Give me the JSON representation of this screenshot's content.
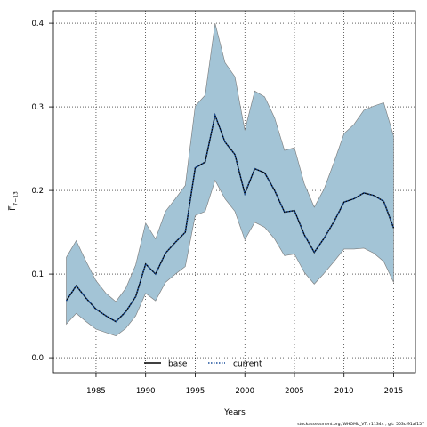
{
  "chart_data": {
    "type": "line",
    "title": "",
    "xlabel": "Years",
    "ylabel": "F̅",
    "ylabel_subscript": "7−13",
    "xlim": [
      1980.7,
      2017.2
    ],
    "ylim": [
      -0.018,
      0.415
    ],
    "xticks": [
      1985,
      1990,
      1995,
      2000,
      2005,
      2010,
      2015
    ],
    "yticks": [
      0.0,
      0.1,
      0.2,
      0.3,
      0.4
    ],
    "ytick_labels": [
      "0.0",
      "0.1",
      "0.2",
      "0.3",
      "0.4"
    ],
    "grid": true,
    "legend_position": "bottom-center",
    "x": [
      1982,
      1983,
      1984,
      1985,
      1986,
      1987,
      1988,
      1989,
      1990,
      1991,
      1992,
      1993,
      1994,
      1995,
      1996,
      1997,
      1998,
      1999,
      2000,
      2001,
      2002,
      2003,
      2004,
      2005,
      2006,
      2007,
      2008,
      2009,
      2010,
      2011,
      2012,
      2013,
      2014,
      2015
    ],
    "band": {
      "lower": [
        0.04,
        0.053,
        0.043,
        0.034,
        0.03,
        0.026,
        0.035,
        0.05,
        0.077,
        0.068,
        0.09,
        0.1,
        0.109,
        0.17,
        0.175,
        0.212,
        0.19,
        0.175,
        0.141,
        0.162,
        0.156,
        0.142,
        0.122,
        0.124,
        0.102,
        0.088,
        0.101,
        0.115,
        0.13,
        0.13,
        0.131,
        0.125,
        0.115,
        0.09
      ],
      "upper": [
        0.12,
        0.14,
        0.115,
        0.092,
        0.077,
        0.067,
        0.083,
        0.111,
        0.161,
        0.142,
        0.175,
        0.19,
        0.206,
        0.301,
        0.314,
        0.4,
        0.353,
        0.336,
        0.272,
        0.319,
        0.312,
        0.287,
        0.248,
        0.251,
        0.208,
        0.18,
        0.202,
        0.234,
        0.268,
        0.279,
        0.296,
        0.301,
        0.305,
        0.265
      ],
      "color": "#a3c4d6"
    },
    "series": [
      {
        "name": "base",
        "style": "solid",
        "color": "#000000",
        "values": [
          0.068,
          0.086,
          0.071,
          0.058,
          0.05,
          0.043,
          0.055,
          0.073,
          0.112,
          0.1,
          0.125,
          0.138,
          0.15,
          0.227,
          0.234,
          0.29,
          0.258,
          0.243,
          0.196,
          0.226,
          0.221,
          0.2,
          0.174,
          0.176,
          0.147,
          0.126,
          0.143,
          0.163,
          0.186,
          0.19,
          0.197,
          0.194,
          0.187,
          0.155
        ]
      },
      {
        "name": "current",
        "style": "dotted",
        "color": "#1a4f9c",
        "values": [
          0.068,
          0.086,
          0.071,
          0.058,
          0.05,
          0.043,
          0.055,
          0.073,
          0.112,
          0.1,
          0.125,
          0.138,
          0.15,
          0.227,
          0.234,
          0.29,
          0.258,
          0.243,
          0.196,
          0.226,
          0.221,
          0.2,
          0.174,
          0.176,
          0.147,
          0.126,
          0.143,
          0.163,
          0.186,
          0.19,
          0.197,
          0.194,
          0.187,
          0.155
        ]
      }
    ]
  },
  "footer_note": "stockassessment.org, WHOMb_VT, r11344 , git: 503cf91af157"
}
